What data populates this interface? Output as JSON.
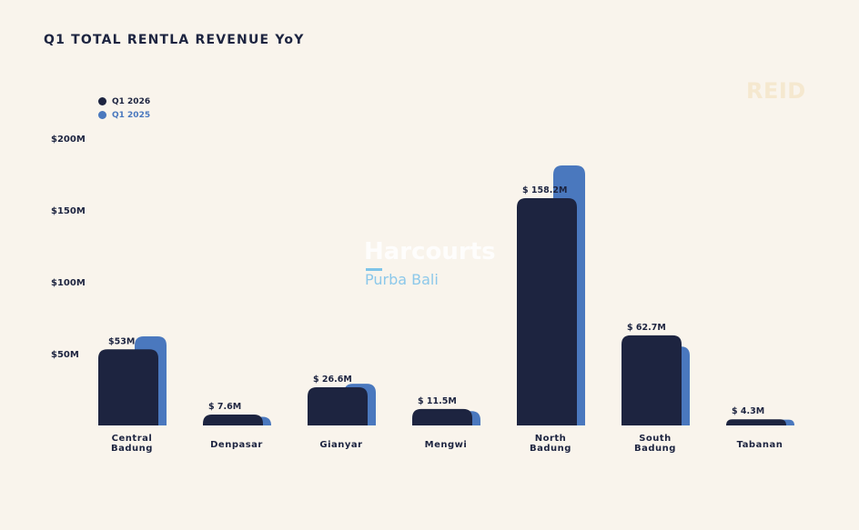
{
  "chart_data": {
    "type": "bar",
    "title": "Q1 TOTAL RENTLA REVENUE YoY",
    "categories": [
      "Central Badung",
      "Denpasar",
      "Gianyar",
      "Mengwi",
      "North Badung",
      "South Badung",
      "Tabanan"
    ],
    "category_lines": [
      [
        "Central",
        "Badung"
      ],
      [
        "Denpasar"
      ],
      [
        "Gianyar"
      ],
      [
        "Mengwi"
      ],
      [
        "North",
        "Badung"
      ],
      [
        "South",
        "Badung"
      ],
      [
        "Tabanan"
      ]
    ],
    "series": [
      {
        "name": "Q1 2026",
        "color": "#1d2440",
        "values": [
          53,
          7.6,
          26.6,
          11.5,
          158.2,
          62.7,
          4.3
        ],
        "labels": [
          "$53M",
          "$ 7.6M",
          "$ 26.6M",
          "$ 11.5M",
          "$ 158.2M",
          "$ 62.7M",
          "$ 4.3M"
        ]
      },
      {
        "name": "Q1 2025",
        "color": "#4a78be",
        "values": [
          62,
          6,
          29,
          10,
          181,
          55,
          4
        ]
      }
    ],
    "yticks": [
      50,
      100,
      150,
      200
    ],
    "ytick_labels": [
      "$50M",
      "$100M",
      "$150M",
      "$200M"
    ],
    "ylim": [
      0,
      200
    ],
    "xlabel": "",
    "ylabel": "",
    "grid": false,
    "legend": "top-left"
  },
  "watermarks": {
    "reid": "REID",
    "harcourts": "Harcourts",
    "purba": "Purba Bali"
  }
}
